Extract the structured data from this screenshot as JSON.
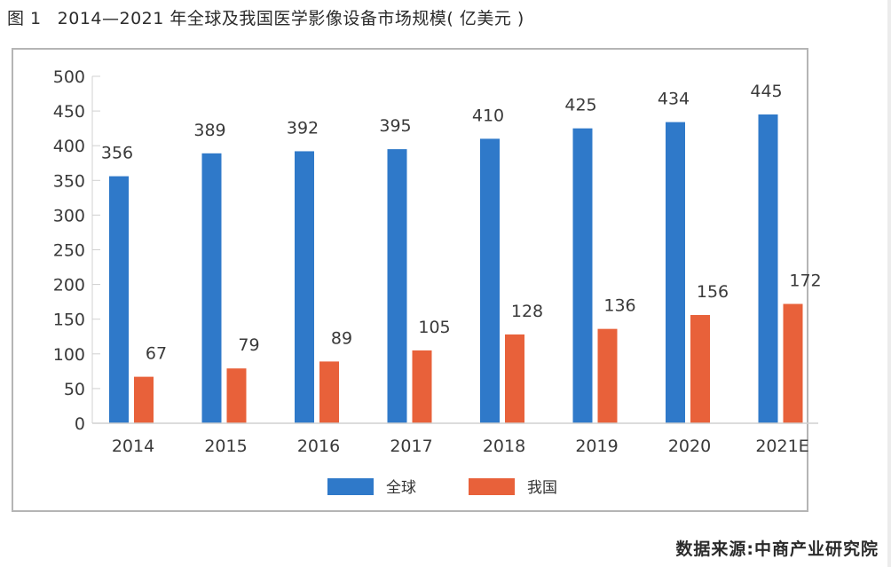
{
  "figure": {
    "number": "图 1",
    "title": "2014—2021 年全球及我国医学影像设备市场规模( 亿美元 )",
    "source": "数据来源:中商产业研究院"
  },
  "colors": {
    "global": "#2f79c9",
    "china": "#e8613a",
    "axis": "#d0d0d0",
    "text": "#3a3a3a"
  },
  "chart_data": {
    "type": "bar",
    "title": "2014—2021 年全球及我国医学影像设备市场规模( 亿美元 )",
    "xlabel": "",
    "ylabel": "",
    "categories": [
      "2014",
      "2015",
      "2016",
      "2017",
      "2018",
      "2019",
      "2020",
      "2021E"
    ],
    "series": [
      {
        "name": "全球",
        "values": [
          356,
          389,
          392,
          395,
          410,
          425,
          434,
          445
        ]
      },
      {
        "name": "我国",
        "values": [
          67,
          79,
          89,
          105,
          128,
          136,
          156,
          172
        ]
      }
    ],
    "ylim": [
      0,
      500
    ],
    "yticks": [
      0,
      50,
      100,
      150,
      200,
      250,
      300,
      350,
      400,
      450,
      500
    ],
    "grid": false,
    "legend": "bottom-center",
    "data_labels": true
  }
}
